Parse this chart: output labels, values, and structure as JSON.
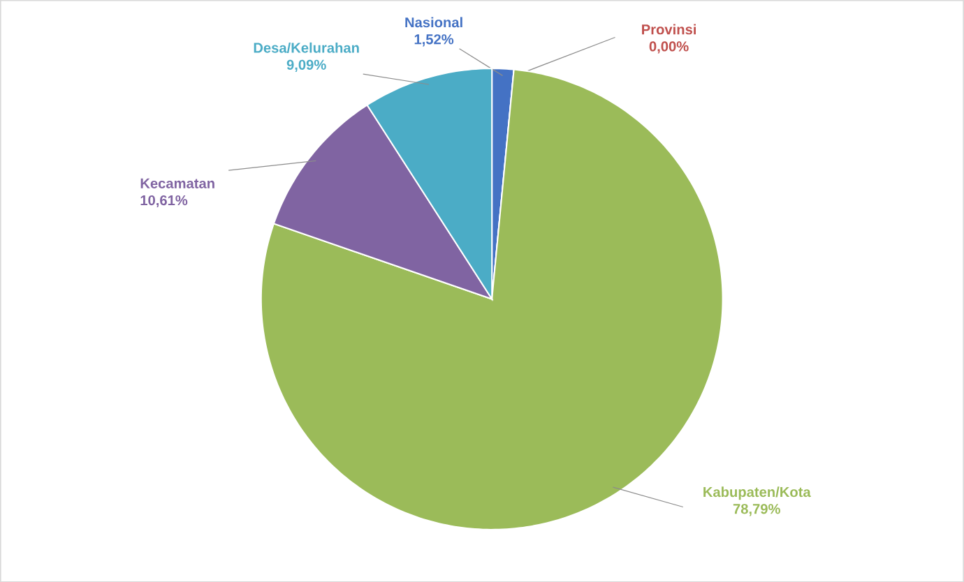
{
  "chart_data": {
    "type": "pie",
    "categories": [
      "Nasional",
      "Provinsi",
      "Kabupaten/Kota",
      "Kecamatan",
      "Desa/Kelurahan"
    ],
    "values": [
      1.52,
      0.0,
      78.79,
      10.61,
      9.09
    ],
    "colors": [
      "#4472c4",
      "#c0504d",
      "#9bbb59",
      "#8064a2",
      "#4bacc6"
    ],
    "value_labels": [
      "1,52%",
      "0,00%",
      "78,79%",
      "10,61%",
      "9,09%"
    ]
  }
}
